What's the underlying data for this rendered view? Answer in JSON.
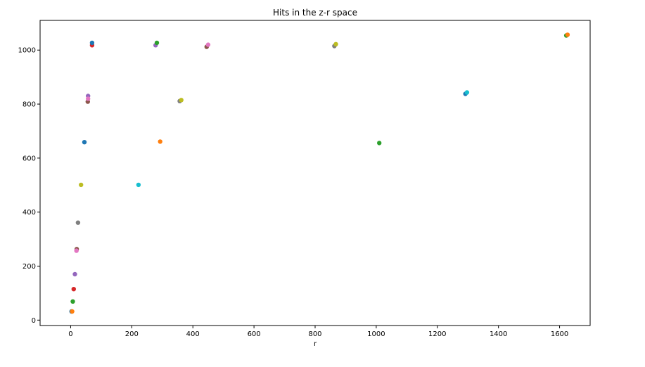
{
  "chart_data": {
    "type": "scatter",
    "title": "Hits in the z-r space",
    "xlabel": "r",
    "ylabel": "",
    "xlim": [
      -100,
      1700
    ],
    "ylim": [
      -20,
      1110
    ],
    "xticks": [
      0,
      200,
      400,
      600,
      800,
      1000,
      1200,
      1400,
      1600
    ],
    "yticks": [
      0,
      200,
      400,
      600,
      800,
      1000
    ],
    "grid": false,
    "points": [
      {
        "x": 3,
        "y": 32,
        "color": "#1f77b4"
      },
      {
        "x": 5,
        "y": 32,
        "color": "#ff7f0e"
      },
      {
        "x": 7,
        "y": 69,
        "color": "#2ca02c"
      },
      {
        "x": 10,
        "y": 115,
        "color": "#d62728"
      },
      {
        "x": 14,
        "y": 170,
        "color": "#9467bd"
      },
      {
        "x": 20,
        "y": 263,
        "color": "#8c564b"
      },
      {
        "x": 19,
        "y": 257,
        "color": "#e377c2"
      },
      {
        "x": 24,
        "y": 361,
        "color": "#7f7f7f"
      },
      {
        "x": 34,
        "y": 501,
        "color": "#bcbd22"
      },
      {
        "x": 45,
        "y": 659,
        "color": "#1f77b4"
      },
      {
        "x": 56,
        "y": 809,
        "color": "#8c564b"
      },
      {
        "x": 57,
        "y": 830,
        "color": "#9467bd"
      },
      {
        "x": 57,
        "y": 820,
        "color": "#e377c2"
      },
      {
        "x": 70,
        "y": 1018,
        "color": "#d62728"
      },
      {
        "x": 70,
        "y": 1027,
        "color": "#1f77b4"
      },
      {
        "x": 222,
        "y": 501,
        "color": "#17becf"
      },
      {
        "x": 278,
        "y": 1018,
        "color": "#9467bd"
      },
      {
        "x": 282,
        "y": 1027,
        "color": "#2ca02c"
      },
      {
        "x": 293,
        "y": 661,
        "color": "#ff7f0e"
      },
      {
        "x": 357,
        "y": 811,
        "color": "#7f7f7f"
      },
      {
        "x": 362,
        "y": 815,
        "color": "#bcbd22"
      },
      {
        "x": 445,
        "y": 1012,
        "color": "#8c564b"
      },
      {
        "x": 450,
        "y": 1020,
        "color": "#e377c2"
      },
      {
        "x": 863,
        "y": 1015,
        "color": "#7f7f7f"
      },
      {
        "x": 868,
        "y": 1022,
        "color": "#bcbd22"
      },
      {
        "x": 1010,
        "y": 656,
        "color": "#2ca02c"
      },
      {
        "x": 1292,
        "y": 838,
        "color": "#1f77b4"
      },
      {
        "x": 1297,
        "y": 843,
        "color": "#17becf"
      },
      {
        "x": 1622,
        "y": 1054,
        "color": "#2ca02c"
      },
      {
        "x": 1626,
        "y": 1057,
        "color": "#ff7f0e"
      }
    ]
  }
}
